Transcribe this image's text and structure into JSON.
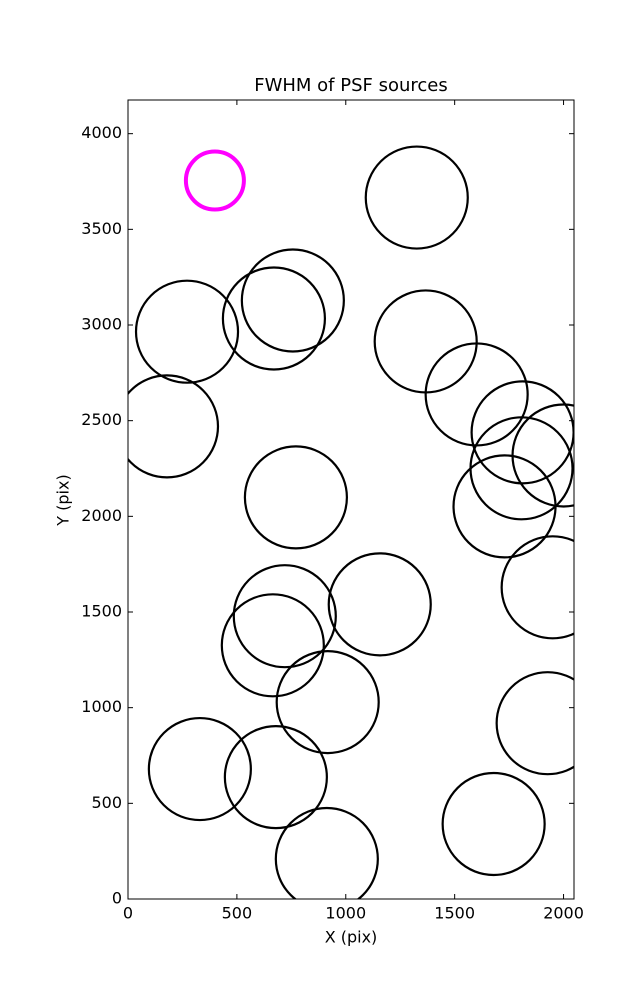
{
  "chart_data": {
    "type": "scatter",
    "title": "FWHM of PSF sources",
    "x_label": "X (pix)",
    "y_label": "Y (pix)",
    "xlim": [
      0,
      2048
    ],
    "ylim": [
      0,
      4176
    ],
    "xticks": [
      0,
      500,
      1000,
      1500,
      2000
    ],
    "yticks": [
      0,
      500,
      1000,
      1500,
      2000,
      2500,
      3000,
      3500,
      4000
    ],
    "series": [
      {
        "color": "#000000",
        "x": [
          1326,
          757,
          670,
          271,
          1367,
          1601,
          179,
          1812,
          2000,
          1807,
          771,
          1729,
          1950,
          1156,
          720,
          665,
          917,
          1927,
          330,
          679,
          1679,
          913
        ],
        "values": [
          3666,
          3128,
          3034,
          2965,
          2914,
          2637,
          2470,
          2439,
          2318,
          2251,
          2099,
          2052,
          1629,
          1540,
          1478,
          1326,
          1029,
          919,
          679,
          637,
          392,
          209
        ]
      },
      {
        "color": "#ff00ff",
        "x": [
          399
        ],
        "values": [
          3755
        ]
      }
    ]
  }
}
